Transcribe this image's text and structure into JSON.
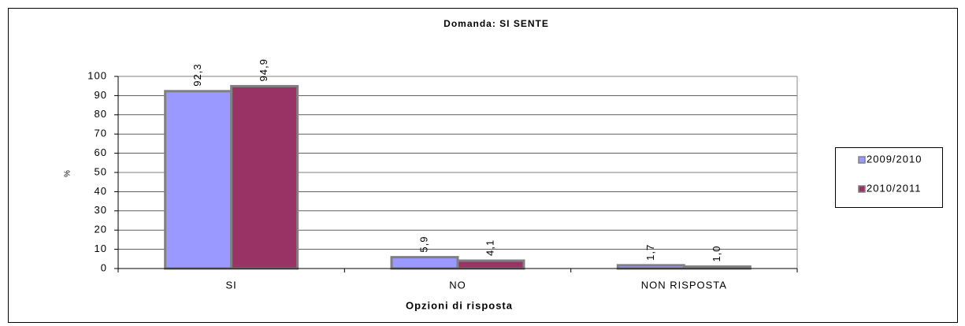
{
  "chart_data": {
    "type": "bar",
    "title": "Domanda: SI SENTE",
    "x_label": "Opzioni di risposta",
    "y_label": "%",
    "categories": [
      "SI",
      "NO",
      "NON RISPOSTA"
    ],
    "series": [
      {
        "name": "2009/2010",
        "color": "#9999ff",
        "values": [
          92.3,
          5.9,
          1.7
        ],
        "value_labels": [
          "92,3",
          "5,9",
          "1,7"
        ]
      },
      {
        "name": "2010/2011",
        "color": "#993366",
        "values": [
          94.9,
          4.1,
          1.0
        ],
        "value_labels": [
          "94,9",
          "4,1",
          "1,0"
        ]
      }
    ],
    "ylim": [
      0,
      100
    ],
    "yticks": [
      0,
      10,
      20,
      30,
      40,
      50,
      60,
      70,
      80,
      90,
      100
    ],
    "grid": true,
    "legend": "right"
  }
}
